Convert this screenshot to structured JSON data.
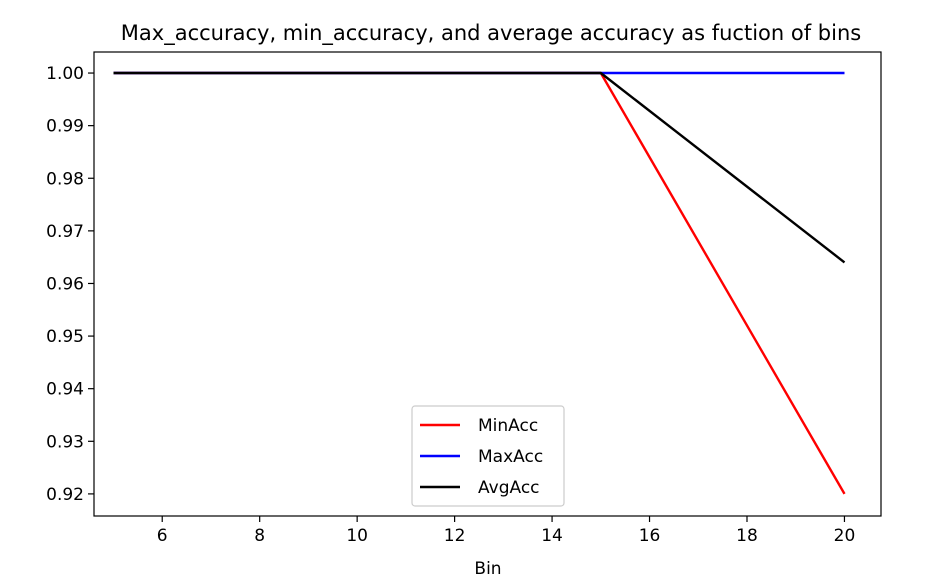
{
  "chart_data": {
    "type": "line",
    "title": "Max_accuracy, min_accuracy, and average accuracy as fuction of bins",
    "xlabel": "Bin",
    "ylabel": "",
    "xlim": [
      4.6,
      20.75
    ],
    "ylim": [
      0.9158,
      1.004
    ],
    "xticks": [
      6,
      8,
      10,
      12,
      14,
      16,
      18,
      20
    ],
    "xtick_labels": [
      "6",
      "8",
      "10",
      "12",
      "14",
      "16",
      "18",
      "20"
    ],
    "yticks": [
      0.92,
      0.93,
      0.94,
      0.95,
      0.96,
      0.97,
      0.98,
      0.99,
      1.0
    ],
    "ytick_labels": [
      "0.92",
      "0.93",
      "0.94",
      "0.95",
      "0.96",
      "0.97",
      "0.98",
      "0.99",
      "1.00"
    ],
    "grid": false,
    "legend_position": "lower-center",
    "series": [
      {
        "name": "MinAcc",
        "color": "#ff0000",
        "x": [
          5,
          10,
          15,
          20
        ],
        "y": [
          1.0,
          1.0,
          1.0,
          0.92
        ]
      },
      {
        "name": "MaxAcc",
        "color": "#0000ff",
        "x": [
          5,
          10,
          15,
          20
        ],
        "y": [
          1.0,
          1.0,
          1.0,
          1.0
        ]
      },
      {
        "name": "AvgAcc",
        "color": "#000000",
        "x": [
          5,
          10,
          15,
          20
        ],
        "y": [
          1.0,
          1.0,
          1.0,
          0.964
        ]
      }
    ]
  }
}
